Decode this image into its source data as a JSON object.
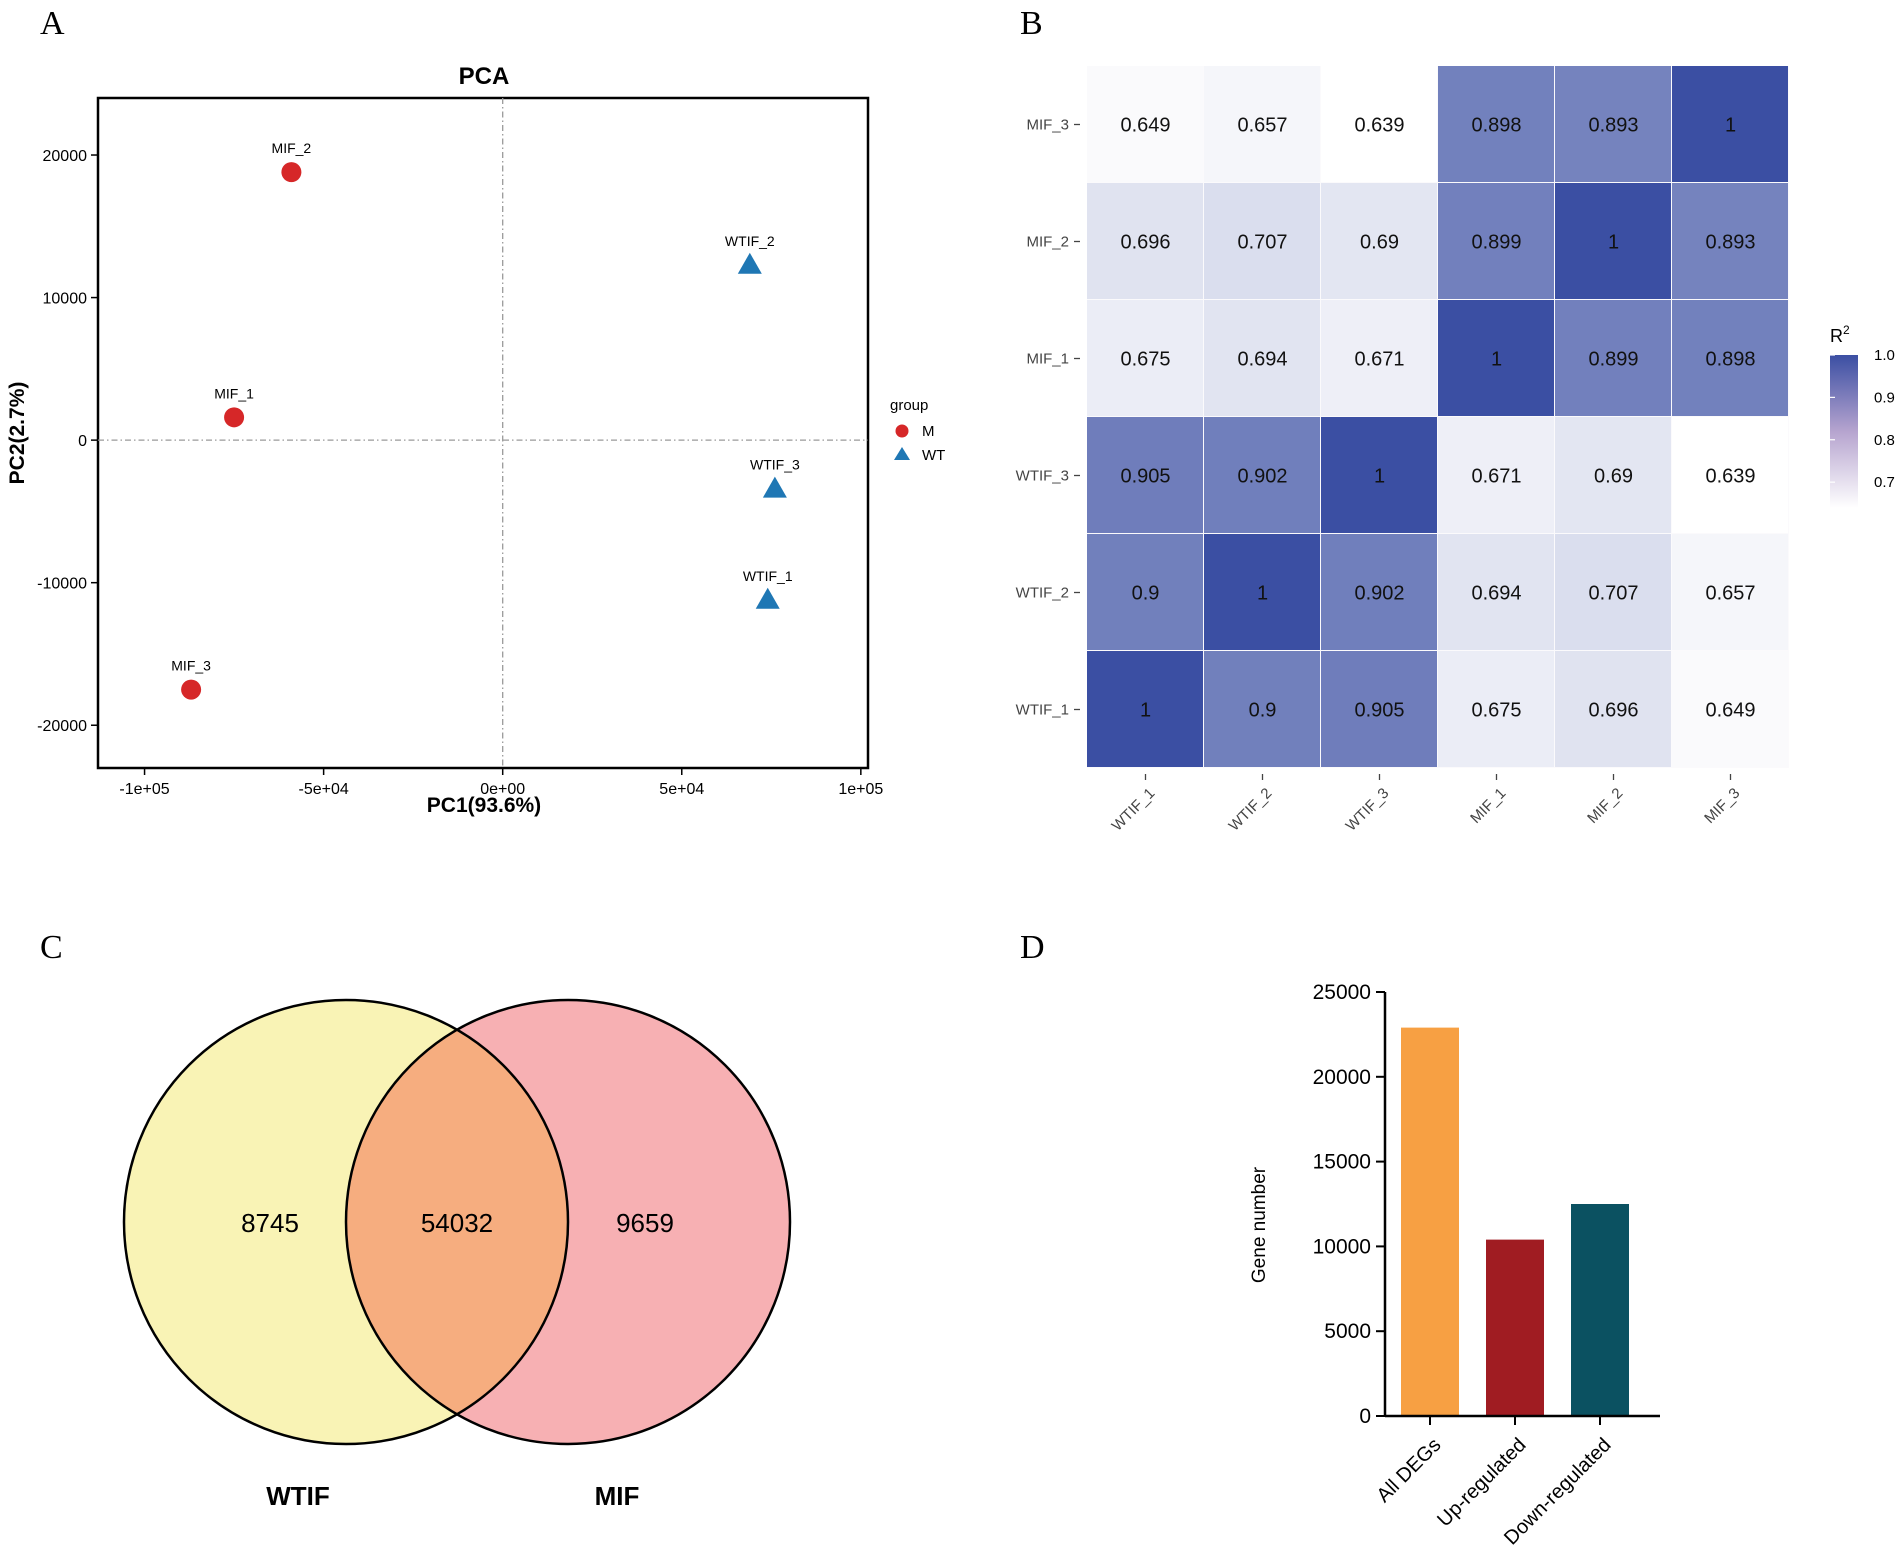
{
  "panels": {
    "a": {
      "label": "A"
    },
    "b": {
      "label": "B"
    },
    "c": {
      "label": "C"
    },
    "d": {
      "label": "D"
    }
  },
  "colors": {
    "group_m": "#d62728",
    "group_wt": "#1f77b4",
    "heat_low": "#ffffff",
    "heat_high": "#3b4fa3",
    "venn_left": "#f9f3b5",
    "venn_right": "#f7b0b3",
    "venn_overlap": "#f6ad7f",
    "bar_all": "#f7a043",
    "bar_up": "#a01c22",
    "bar_down": "#0b5161"
  },
  "chart_data": [
    {
      "id": "pca",
      "type": "scatter",
      "title": "PCA",
      "xlabel": "PC1(93.6%)",
      "ylabel": "PC2(2.7%)",
      "xlim": [
        -113000,
        102000
      ],
      "ylim": [
        -23000,
        24000
      ],
      "xticks": [
        -100000,
        -50000,
        0,
        50000,
        100000
      ],
      "xtick_labels": [
        "-1e+05",
        "-5e+04",
        "0e+00",
        "5e+04",
        "1e+05"
      ],
      "yticks": [
        20000,
        10000,
        0,
        -10000,
        -20000
      ],
      "ytick_labels": [
        "20000",
        "10000",
        "0",
        "-10000",
        "-20000"
      ],
      "legend_title": "group",
      "legend": [
        {
          "name": "M",
          "marker": "circle"
        },
        {
          "name": "WT",
          "marker": "triangle"
        }
      ],
      "points": [
        {
          "label": "MIF_2",
          "group": "M",
          "x": -59000,
          "y": 18800
        },
        {
          "label": "MIF_1",
          "group": "M",
          "x": -75000,
          "y": 1600
        },
        {
          "label": "MIF_3",
          "group": "M",
          "x": -87000,
          "y": -17500
        },
        {
          "label": "WTIF_2",
          "group": "WT",
          "x": 69000,
          "y": 12300
        },
        {
          "label": "WTIF_3",
          "group": "WT",
          "x": 76000,
          "y": -3400
        },
        {
          "label": "WTIF_1",
          "group": "WT",
          "x": 74000,
          "y": -11200
        }
      ]
    },
    {
      "id": "correlation",
      "type": "heatmap",
      "row_labels": [
        "MIF_3",
        "MIF_2",
        "MIF_1",
        "WTIF_3",
        "WTIF_2",
        "WTIF_1"
      ],
      "col_labels": [
        "WTIF_1",
        "WTIF_2",
        "WTIF_3",
        "MIF_1",
        "MIF_2",
        "MIF_3"
      ],
      "values": [
        [
          "0.649",
          "0.657",
          "0.639",
          "0.898",
          "0.893",
          "1"
        ],
        [
          "0.696",
          "0.707",
          "0.69",
          "0.899",
          "1",
          "0.893"
        ],
        [
          "0.675",
          "0.694",
          "0.671",
          "1",
          "0.899",
          "0.898"
        ],
        [
          "0.905",
          "0.902",
          "1",
          "0.671",
          "0.69",
          "0.639"
        ],
        [
          "0.9",
          "1",
          "0.902",
          "0.694",
          "0.707",
          "0.657"
        ],
        [
          "1",
          "0.9",
          "0.905",
          "0.675",
          "0.696",
          "0.649"
        ]
      ],
      "legend_title": "R",
      "legend_title_sup": "2",
      "scale_range": [
        0.639,
        1.0
      ],
      "legend_ticks": [
        "1.0",
        "0.9",
        "0.8",
        "0.7"
      ]
    },
    {
      "id": "venn",
      "type": "venn",
      "sets": [
        "WTIF",
        "MIF"
      ],
      "only_left": "8745",
      "overlap": "54032",
      "only_right": "9659"
    },
    {
      "id": "degs",
      "type": "bar",
      "categories": [
        "All DEGs",
        "Up-regulated",
        "Down-regulated"
      ],
      "values": [
        22900,
        10400,
        12500
      ],
      "ylabel": "Gene number",
      "xlabel": "",
      "title": "",
      "ylim": [
        0,
        25000
      ],
      "yticks": [
        "25000",
        "20000",
        "15000",
        "10000",
        "5000",
        "0"
      ]
    }
  ]
}
